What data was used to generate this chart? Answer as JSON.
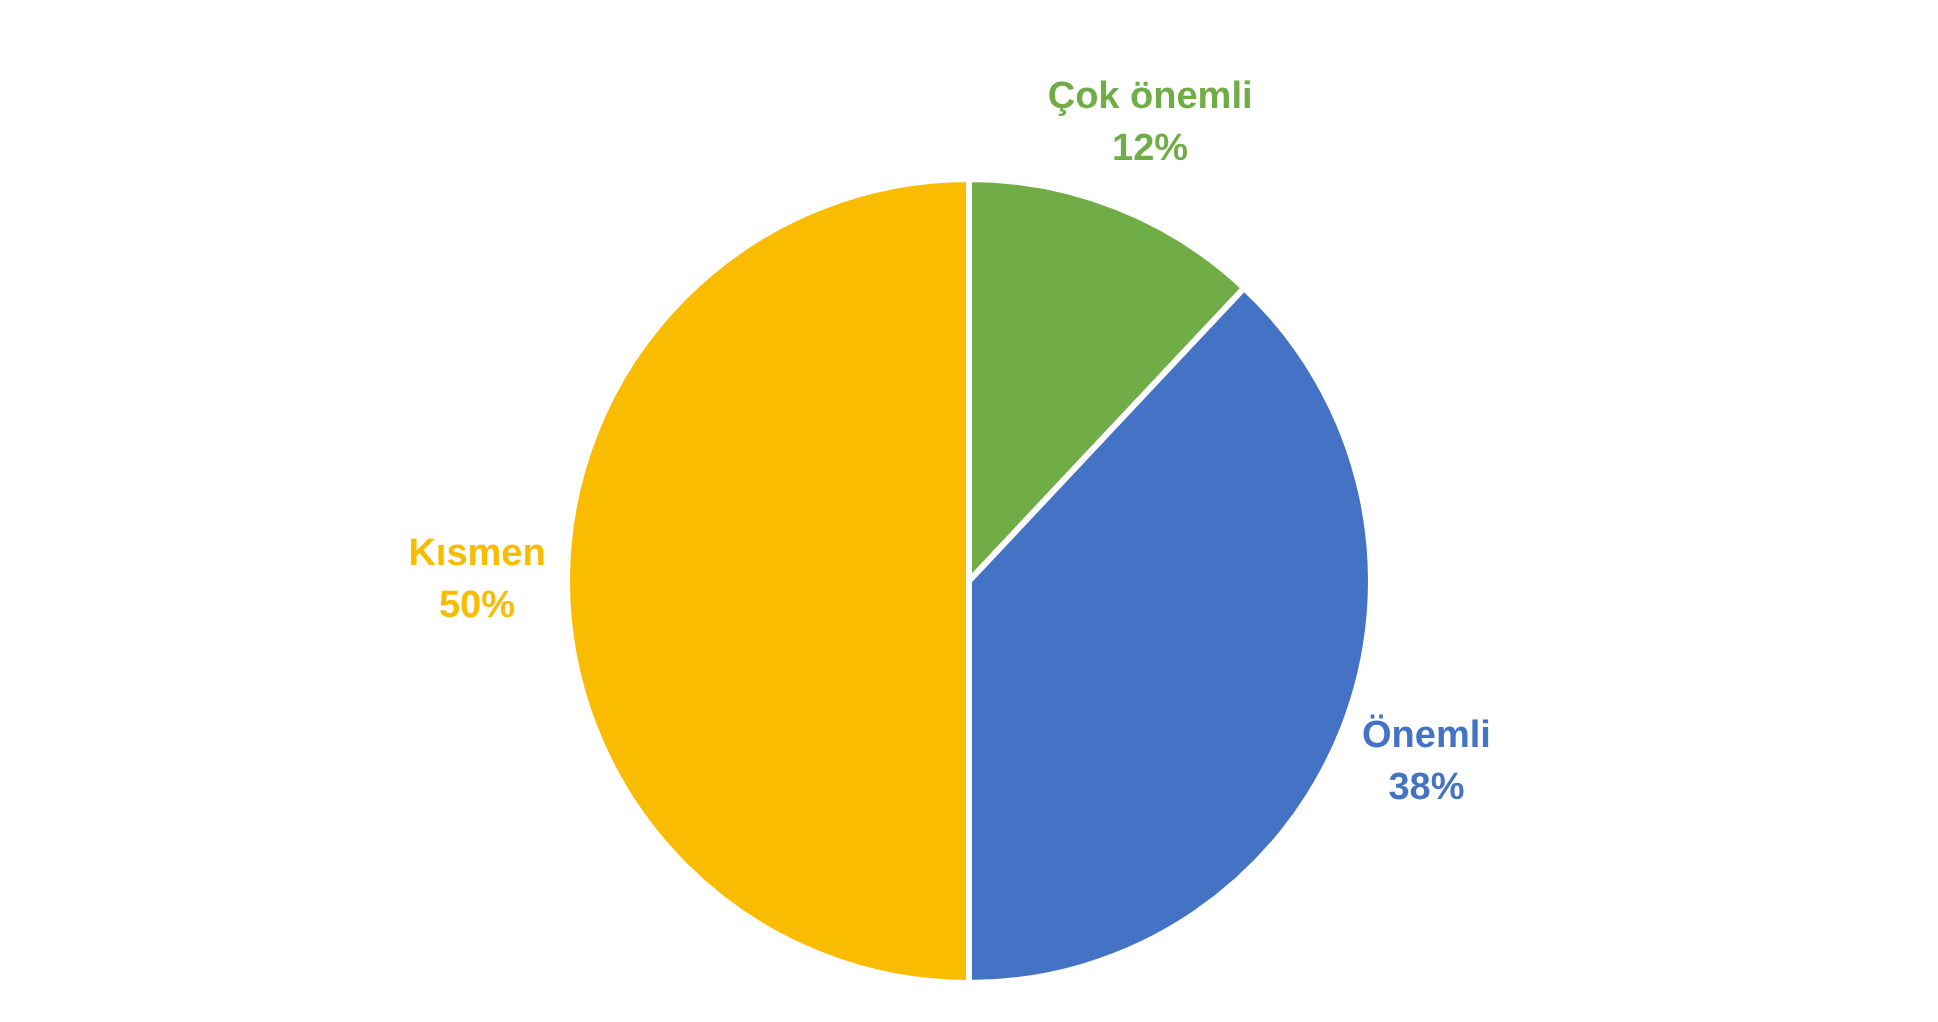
{
  "chart_data": {
    "type": "pie",
    "categories": [
      "Çok önemli",
      "Önemli",
      "Kısmen"
    ],
    "values": [
      12,
      38,
      50
    ],
    "value_labels": [
      "12%",
      "38%",
      "50%"
    ],
    "colors": [
      "#70ad47",
      "#4472c4",
      "#f9bc00"
    ],
    "legend": false
  }
}
